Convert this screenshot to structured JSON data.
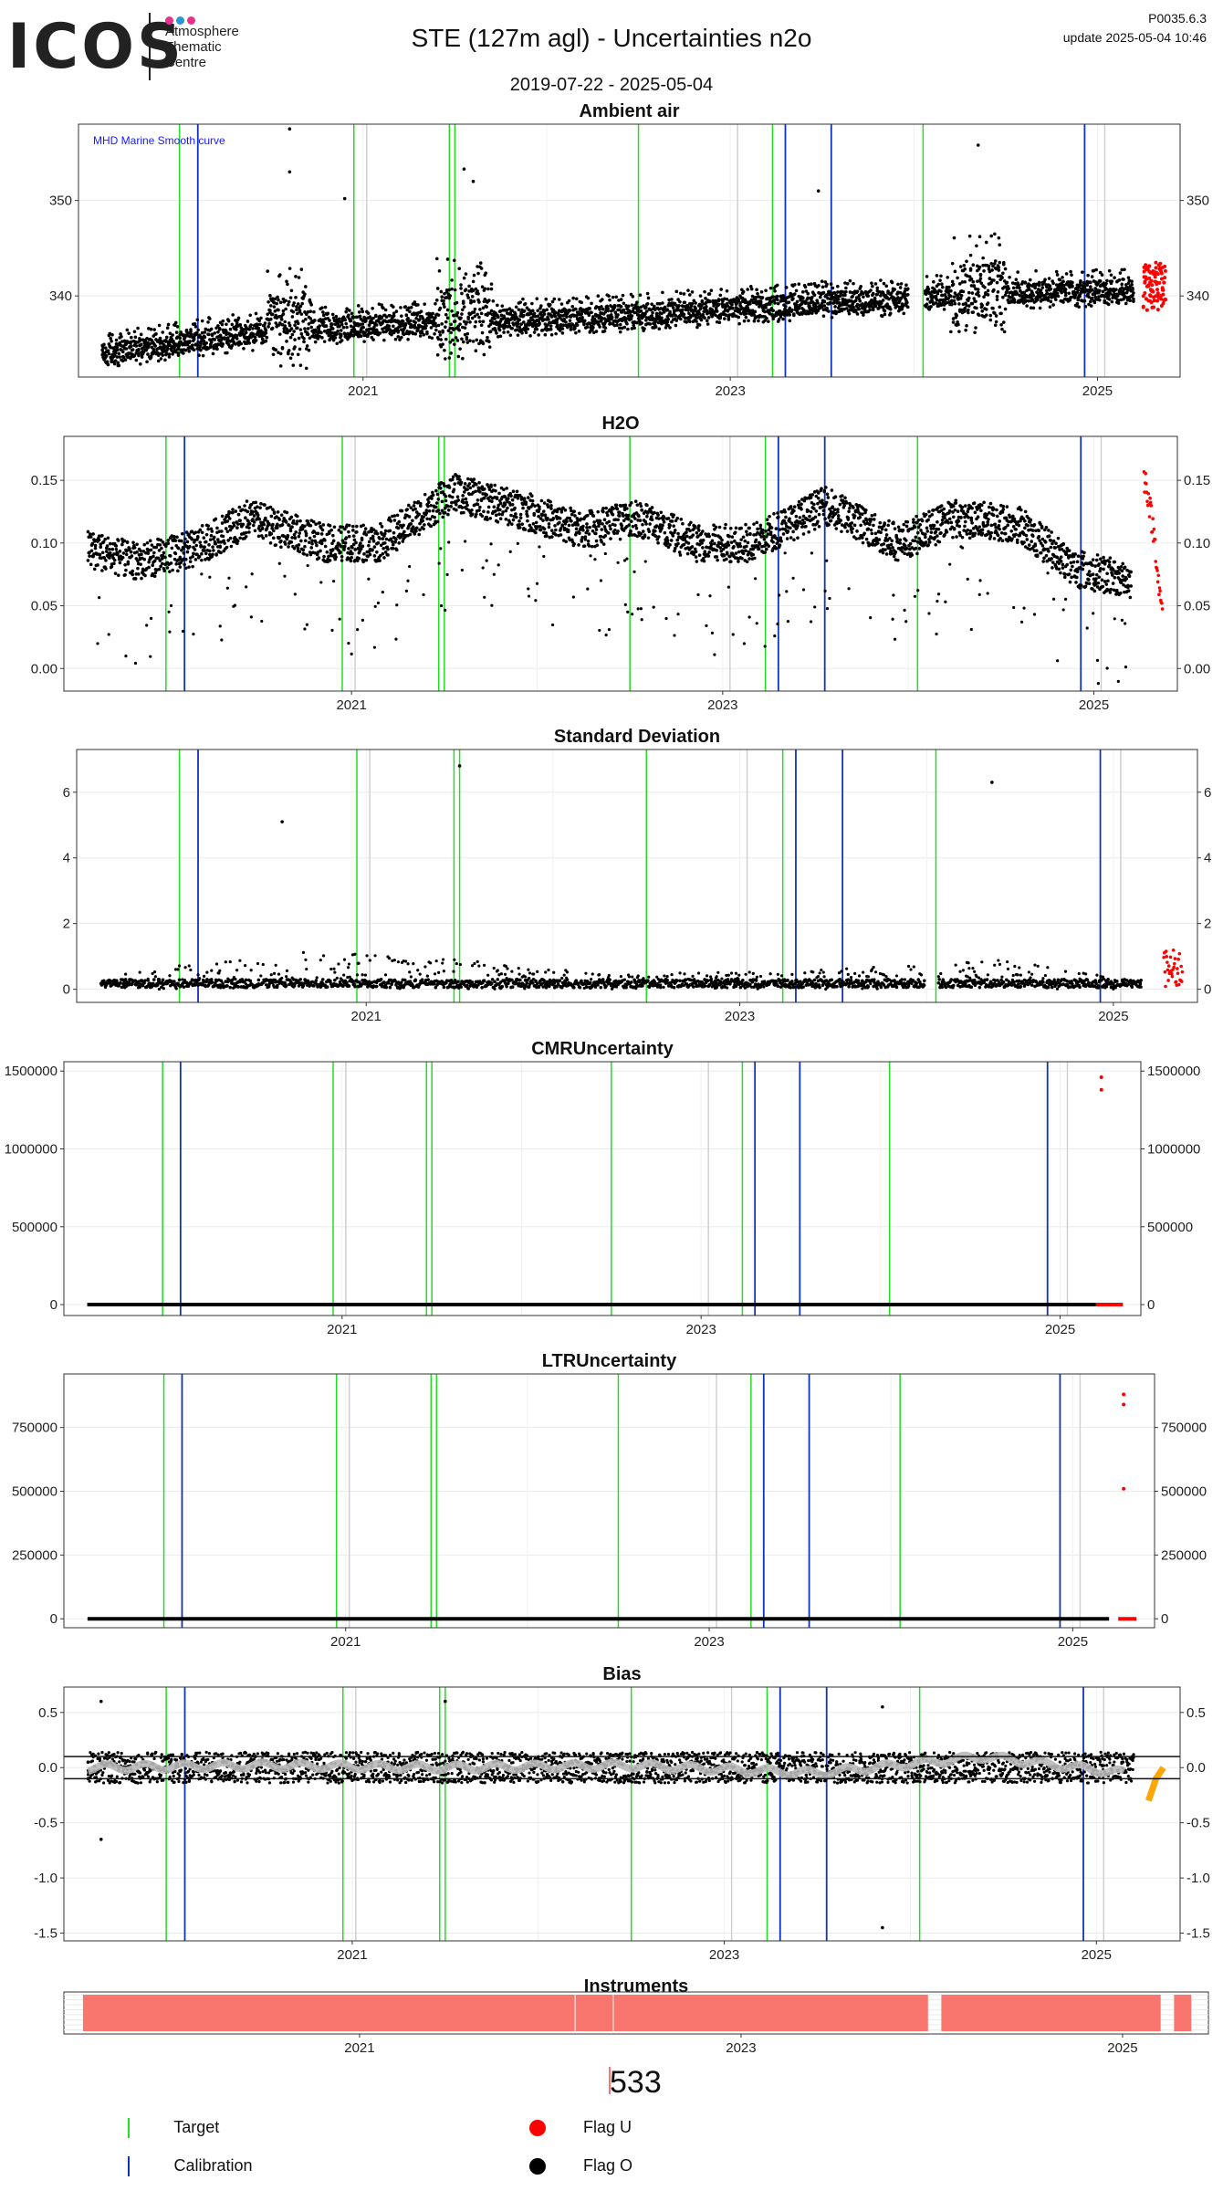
{
  "header": {
    "logo_text": "ICOS",
    "logo_line1": "Atmosphere",
    "logo_line2": "Thematic",
    "logo_line3": "Centre",
    "logo_dot_colors": [
      "#e5338b",
      "#2a96d4",
      "#e5338b"
    ],
    "title": "STE  (127m agl) - Uncertainties n2o",
    "date_range": "2019-07-22 - 2025-05-04",
    "version": "P0035.6.3",
    "update": "update  2025-05-04 10:46"
  },
  "colors": {
    "target": "#22dd22",
    "calibration": "#1133bb",
    "flag_u": "#ff0000",
    "flag_o": "#000000",
    "bias_smooth": "#b8b8b8",
    "bias_orange": "#ffa500",
    "instrument_bar": "#f8766d",
    "gray_line": "#d0d0d0",
    "annotation": "#1a1aff"
  },
  "chart_data": [
    {
      "id": "ambient",
      "type": "scatter",
      "title": "Ambient air",
      "annotation": "MHD Marine Smooth curve",
      "y_ticks": [
        "340",
        "350"
      ],
      "x_ticks": [
        "2021",
        "2023",
        "2025"
      ],
      "ylim": [
        331.5,
        358
      ],
      "xlim": [
        2019.45,
        2025.45
      ],
      "grid": true,
      "series": [
        {
          "values": [
            [
              2019.58,
              333.5
            ],
            [
              2019.9,
              334.5
            ],
            [
              2020.2,
              335.3
            ],
            [
              2020.6,
              336.0
            ],
            [
              2021.0,
              336.5
            ],
            [
              2021.5,
              337.0
            ],
            [
              2022.0,
              337.2
            ],
            [
              2022.5,
              337.7
            ],
            [
              2023.0,
              338.3
            ],
            [
              2023.5,
              339.0
            ],
            [
              2023.95,
              339.2
            ],
            [
              2024.1,
              339.6
            ],
            [
              2024.5,
              340.0
            ],
            [
              2025.0,
              340.2
            ],
            [
              2025.2,
              340.3
            ]
          ]
        },
        {
          "values": [
            [
              2020.6,
              357.5
            ],
            [
              2020.6,
              353
            ],
            [
              2020.9,
              350.2
            ],
            [
              2021.55,
              353.3
            ],
            [
              2021.6,
              352
            ],
            [
              2023.48,
              351
            ],
            [
              2024.35,
              355.8
            ],
            [
              2025.28,
              345
            ],
            [
              2025.3,
              340
            ]
          ]
        }
      ]
    },
    {
      "id": "h2o",
      "type": "scatter",
      "title": "H2O",
      "y_ticks": [
        "0.00",
        "0.05",
        "0.10",
        "0.15"
      ],
      "x_ticks": [
        "2021",
        "2023",
        "2025"
      ],
      "ylim": [
        -0.018,
        0.185
      ],
      "xlim": [
        2019.45,
        2025.45
      ],
      "grid": true,
      "series": [
        {
          "values": [
            [
              2019.58,
              0.095
            ],
            [
              2019.85,
              0.085
            ],
            [
              2020.15,
              0.095
            ],
            [
              2020.45,
              0.12
            ],
            [
              2020.85,
              0.1
            ],
            [
              2021.15,
              0.1
            ],
            [
              2021.55,
              0.14
            ],
            [
              2021.95,
              0.125
            ],
            [
              2022.25,
              0.11
            ],
            [
              2022.55,
              0.12
            ],
            [
              2022.85,
              0.1
            ],
            [
              2023.15,
              0.1
            ],
            [
              2023.55,
              0.13
            ],
            [
              2023.95,
              0.1
            ],
            [
              2024.25,
              0.12
            ],
            [
              2024.6,
              0.115
            ],
            [
              2024.9,
              0.08
            ],
            [
              2025.2,
              0.07
            ]
          ]
        },
        {
          "values": [
            [
              2025.28,
              0.15
            ],
            [
              2025.33,
              0.1
            ],
            [
              2025.36,
              0.05
            ]
          ]
        }
      ]
    },
    {
      "id": "stddev",
      "type": "scatter",
      "title": "Standard Deviation",
      "y_ticks": [
        "0",
        "2",
        "4",
        "6"
      ],
      "x_ticks": [
        "2021",
        "2023",
        "2025"
      ],
      "ylim": [
        -0.4,
        7.3
      ],
      "xlim": [
        2019.45,
        2025.45
      ],
      "grid": true,
      "series": [
        {
          "values": [
            [
              2019.58,
              0.25
            ],
            [
              2020.6,
              0.8
            ],
            [
              2021.5,
              0.6
            ],
            [
              2022.3,
              0.3
            ],
            [
              2023.5,
              0.4
            ],
            [
              2024.4,
              0.6
            ],
            [
              2025.1,
              0.2
            ],
            [
              2020.55,
              5.1
            ],
            [
              2021.5,
              6.8
            ],
            [
              2024.35,
              6.3
            ]
          ]
        },
        {
          "values": [
            [
              2025.3,
              0.6
            ],
            [
              2025.35,
              1.8
            ]
          ]
        }
      ]
    },
    {
      "id": "cmr",
      "type": "scatter",
      "title": "CMRUncertainty",
      "y_ticks": [
        "0",
        "500000",
        "1000000",
        "1500000"
      ],
      "x_ticks": [
        "2021",
        "2023",
        "2025"
      ],
      "ylim": [
        -70000,
        1560000
      ],
      "xlim": [
        2019.45,
        2025.45
      ],
      "grid": true,
      "series": [
        {
          "values": [
            [
              2019.58,
              0
            ],
            [
              2025.2,
              0
            ]
          ]
        },
        {
          "values": [
            [
              2025.2,
              0
            ],
            [
              2025.35,
              0
            ],
            [
              2025.23,
              1460000
            ],
            [
              2025.23,
              1380000
            ]
          ]
        }
      ]
    },
    {
      "id": "ltr",
      "type": "scatter",
      "title": "LTRUncertainty",
      "y_ticks": [
        "0",
        "250000",
        "500000",
        "750000"
      ],
      "x_ticks": [
        "2021",
        "2023",
        "2025"
      ],
      "ylim": [
        -35000,
        960000
      ],
      "xlim": [
        2019.45,
        2025.45
      ],
      "grid": true,
      "series": [
        {
          "values": [
            [
              2019.58,
              0
            ],
            [
              2025.2,
              0
            ]
          ]
        },
        {
          "values": [
            [
              2025.25,
              0
            ],
            [
              2025.35,
              0
            ],
            [
              2025.28,
              880000
            ],
            [
              2025.28,
              840000
            ],
            [
              2025.28,
              510000
            ]
          ]
        }
      ]
    },
    {
      "id": "bias",
      "type": "scatter",
      "title": "Bias",
      "y_ticks": [
        "-1.5",
        "-1.0",
        "-0.5",
        "0.0",
        "0.5"
      ],
      "x_ticks": [
        "2021",
        "2023",
        "2025"
      ],
      "ylim": [
        -1.57,
        0.73
      ],
      "xlim": [
        2019.45,
        2025.45
      ],
      "grid": true,
      "hlines": [
        0.1,
        -0.1
      ],
      "series": [
        {
          "values": [
            [
              2019.58,
              0.05
            ],
            [
              2019.58,
              -0.1
            ],
            [
              2019.65,
              0.6
            ],
            [
              2019.65,
              -0.65
            ],
            [
              2021.5,
              0.6
            ],
            [
              2023.85,
              -1.45
            ],
            [
              2023.85,
              0.55
            ]
          ]
        },
        {
          "values": [
            [
              2019.58,
              0.0
            ],
            [
              2020.5,
              0.02
            ],
            [
              2021.5,
              0.0
            ],
            [
              2022.5,
              0.02
            ],
            [
              2023.5,
              -0.05
            ],
            [
              2024.4,
              0.1
            ],
            [
              2024.9,
              0.0
            ],
            [
              2025.15,
              -0.05
            ]
          ]
        },
        {
          "values": [
            [
              2025.28,
              -0.3
            ],
            [
              2025.32,
              -0.1
            ],
            [
              2025.36,
              0.0
            ]
          ]
        }
      ]
    },
    {
      "id": "instruments",
      "type": "bar",
      "title": "Instruments",
      "x_ticks": [
        "2021",
        "2023",
        "2025"
      ],
      "xlim": [
        2019.45,
        2025.45
      ],
      "series": [
        {
          "name": "533",
          "values": [
            [
              2019.55,
              2023.98
            ],
            [
              2024.05,
              2025.2
            ],
            [
              2025.27,
              2025.36
            ]
          ]
        }
      ]
    }
  ],
  "vlines": {
    "target": [
      2020.0,
      2020.95,
      2021.47,
      2021.5,
      2022.5,
      2023.23
    ],
    "calibration": [
      2020.1,
      2023.3,
      2023.55,
      2024.93
    ],
    "gray": [
      2020.98,
      2023.0,
      2025.0
    ],
    "target_late": [
      2024.05
    ]
  },
  "instruments_label": "533",
  "legend": {
    "target": "Target",
    "calibration": "Calibration",
    "flag_u": "Flag U",
    "flag_o": "Flag O"
  }
}
